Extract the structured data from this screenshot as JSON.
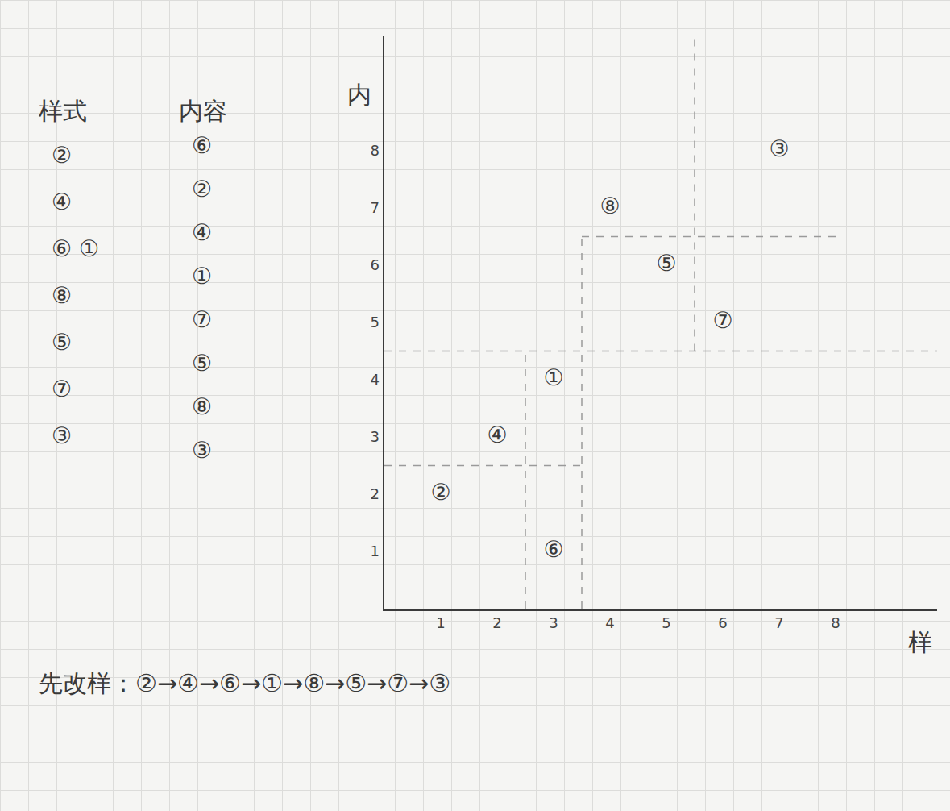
{
  "chart_data": {
    "type": "scatter",
    "x_label": "样",
    "y_label": "内",
    "series": [
      {
        "x": [
          1,
          2,
          3,
          3,
          4,
          5,
          6,
          7
        ],
        "values": [
          2,
          3,
          4,
          1,
          7,
          6,
          5,
          8
        ],
        "labels": [
          "②",
          "④",
          "①",
          "⑥",
          "⑧",
          "⑤",
          "⑦",
          "③"
        ],
        "color": "#3a3a3a"
      }
    ],
    "xlim": [
      0,
      9.8
    ],
    "ylim": [
      0,
      10
    ],
    "xticks": [
      1,
      2,
      3,
      4,
      5,
      6,
      7,
      8
    ],
    "yticks": [
      1,
      2,
      3,
      4,
      5,
      6,
      7,
      8
    ],
    "grid": false,
    "data_labels": true,
    "dividers": [
      {
        "x0": 2.5,
        "x1": 2.5,
        "y0": 0,
        "y1": 4.5
      },
      {
        "x0": 0,
        "x1": 3.5,
        "y0": 2.5,
        "y1": 2.5
      },
      {
        "x0": 3.5,
        "x1": 3.5,
        "y0": 0,
        "y1": 6.5
      },
      {
        "x0": 0,
        "x1": 9.8,
        "y0": 4.5,
        "y1": 4.5
      },
      {
        "x0": 3.5,
        "x1": 8.1,
        "y0": 6.5,
        "y1": 6.5
      },
      {
        "x0": 5.5,
        "x1": 5.5,
        "y0": 4.5,
        "y1": 10
      }
    ],
    "side_lists": [
      {
        "title": "样式",
        "items": [
          "②",
          "④",
          "⑥ ①",
          "⑧",
          "⑤",
          "⑦",
          "③"
        ]
      },
      {
        "title": "内容",
        "items": [
          "⑥",
          "②",
          "④",
          "①",
          "⑦",
          "⑤",
          "⑧",
          "③"
        ]
      }
    ],
    "note": "先改样：②→④→⑥→①→⑧→⑤→⑦→③"
  }
}
